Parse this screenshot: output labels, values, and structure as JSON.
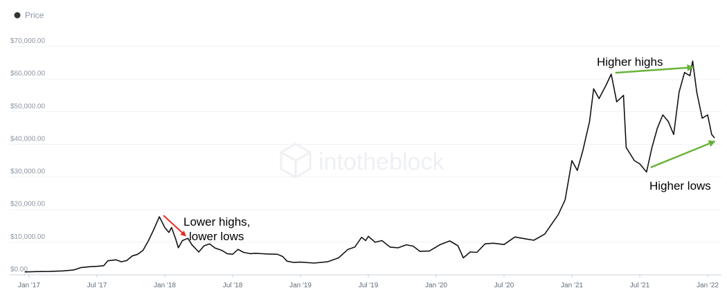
{
  "chart_data": {
    "type": "line",
    "legend": {
      "label": "Price",
      "placement": "top-left",
      "marker_color": "#333333"
    },
    "watermark": "intotheblock",
    "y_ticks": [
      "$0.00",
      "$10,000.00",
      "$20,000.00",
      "$30,000.00",
      "$40,000.00",
      "$50,000.00",
      "$60,000.00",
      "$70,000.00"
    ],
    "x_ticks": [
      "Jan '17",
      "Jul '17",
      "Jan '18",
      "Jul '18",
      "Jan '19",
      "Jul '19",
      "Jan '20",
      "Jul '20",
      "Jan '21",
      "Jul '21",
      "Jan '22"
    ],
    "ylim": [
      0,
      70000
    ],
    "grid": true,
    "series": [
      {
        "values": [
          [
            2016.97,
            900
          ],
          [
            2017.05,
            1000
          ],
          [
            2017.15,
            1050
          ],
          [
            2017.25,
            1200
          ],
          [
            2017.33,
            1500
          ],
          [
            2017.38,
            2200
          ],
          [
            2017.45,
            2500
          ],
          [
            2017.5,
            2600
          ],
          [
            2017.55,
            2800
          ],
          [
            2017.58,
            4300
          ],
          [
            2017.64,
            4600
          ],
          [
            2017.68,
            4000
          ],
          [
            2017.72,
            4400
          ],
          [
            2017.76,
            5800
          ],
          [
            2017.8,
            6300
          ],
          [
            2017.84,
            7500
          ],
          [
            2017.88,
            10500
          ],
          [
            2017.92,
            14000
          ],
          [
            2017.96,
            17800
          ],
          [
            2018.0,
            14500
          ],
          [
            2018.03,
            13000
          ],
          [
            2018.05,
            14500
          ],
          [
            2018.08,
            11000
          ],
          [
            2018.1,
            8300
          ],
          [
            2018.13,
            10500
          ],
          [
            2018.17,
            11200
          ],
          [
            2018.2,
            9200
          ],
          [
            2018.25,
            7000
          ],
          [
            2018.29,
            8900
          ],
          [
            2018.33,
            9500
          ],
          [
            2018.37,
            8200
          ],
          [
            2018.42,
            7500
          ],
          [
            2018.46,
            6500
          ],
          [
            2018.5,
            6300
          ],
          [
            2018.54,
            7800
          ],
          [
            2018.58,
            6900
          ],
          [
            2018.63,
            6500
          ],
          [
            2018.67,
            6600
          ],
          [
            2018.75,
            6400
          ],
          [
            2018.83,
            6300
          ],
          [
            2018.87,
            5600
          ],
          [
            2018.9,
            4200
          ],
          [
            2018.95,
            3800
          ],
          [
            2019.0,
            3900
          ],
          [
            2019.1,
            3600
          ],
          [
            2019.2,
            4000
          ],
          [
            2019.28,
            5200
          ],
          [
            2019.35,
            7800
          ],
          [
            2019.4,
            8500
          ],
          [
            2019.45,
            11500
          ],
          [
            2019.48,
            10500
          ],
          [
            2019.5,
            11800
          ],
          [
            2019.55,
            10000
          ],
          [
            2019.6,
            10500
          ],
          [
            2019.66,
            8500
          ],
          [
            2019.72,
            8300
          ],
          [
            2019.78,
            9200
          ],
          [
            2019.83,
            8800
          ],
          [
            2019.88,
            7200
          ],
          [
            2019.95,
            7300
          ],
          [
            2020.03,
            9300
          ],
          [
            2020.1,
            10400
          ],
          [
            2020.16,
            8900
          ],
          [
            2020.2,
            5200
          ],
          [
            2020.25,
            7000
          ],
          [
            2020.3,
            6900
          ],
          [
            2020.36,
            9500
          ],
          [
            2020.42,
            9700
          ],
          [
            2020.5,
            9300
          ],
          [
            2020.58,
            11600
          ],
          [
            2020.66,
            11000
          ],
          [
            2020.72,
            10600
          ],
          [
            2020.8,
            12500
          ],
          [
            2020.85,
            15500
          ],
          [
            2020.9,
            18500
          ],
          [
            2020.95,
            23000
          ],
          [
            2021.0,
            35000
          ],
          [
            2021.04,
            32000
          ],
          [
            2021.08,
            38000
          ],
          [
            2021.13,
            47000
          ],
          [
            2021.16,
            57000
          ],
          [
            2021.2,
            54000
          ],
          [
            2021.25,
            58000
          ],
          [
            2021.29,
            61500
          ],
          [
            2021.33,
            53000
          ],
          [
            2021.38,
            55000
          ],
          [
            2021.4,
            39000
          ],
          [
            2021.46,
            35000
          ],
          [
            2021.5,
            34000
          ],
          [
            2021.55,
            31500
          ],
          [
            2021.59,
            39000
          ],
          [
            2021.63,
            45000
          ],
          [
            2021.67,
            49000
          ],
          [
            2021.71,
            47000
          ],
          [
            2021.75,
            43000
          ],
          [
            2021.79,
            56000
          ],
          [
            2021.83,
            62000
          ],
          [
            2021.87,
            61000
          ],
          [
            2021.89,
            65500
          ],
          [
            2021.92,
            56000
          ],
          [
            2021.96,
            48000
          ],
          [
            2022.0,
            49000
          ],
          [
            2022.03,
            43000
          ],
          [
            2022.05,
            42000
          ]
        ]
      }
    ],
    "annotations": [
      {
        "text_lines": [
          "Lower highs,",
          "lower lows"
        ],
        "arrow_color": "#e8271c",
        "arrow_from": [
          2017.97,
          17800
        ],
        "arrow_to": [
          2018.13,
          10800
        ]
      },
      {
        "text_lines": [
          "Higher highs"
        ],
        "arrow_color": "#6ab23a",
        "arrow_from": [
          2021.29,
          61500
        ],
        "arrow_to": [
          2021.87,
          64000
        ]
      },
      {
        "text_lines": [
          "Higher lows"
        ],
        "arrow_color": "#6ab23a",
        "arrow_from": [
          2021.55,
          32500
        ],
        "arrow_to": [
          2022.04,
          40000
        ]
      }
    ]
  }
}
